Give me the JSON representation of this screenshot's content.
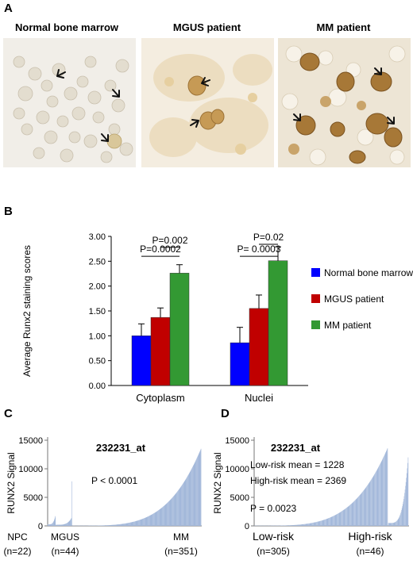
{
  "panelA": {
    "letter": "A",
    "images": [
      {
        "title": "Normal bone marrow"
      },
      {
        "title": "MGUS patient"
      },
      {
        "title": "MM patient"
      }
    ]
  },
  "panelB": {
    "letter": "B"
  },
  "panelC": {
    "letter": "C"
  },
  "panelD": {
    "letter": "D"
  },
  "chart_data": [
    {
      "type": "bar",
      "categories": [
        "Cytoplasm",
        "Nuclei"
      ],
      "series": [
        {
          "name": "Normal bone marrow",
          "color": "#0000ff",
          "values": [
            1.0,
            0.86
          ],
          "errors": [
            0.24,
            0.31
          ]
        },
        {
          "name": "MGUS patient",
          "color": "#c00000",
          "values": [
            1.37,
            1.55
          ],
          "errors": [
            0.19,
            0.27
          ]
        },
        {
          "name": "MM patient",
          "color": "#339933",
          "values": [
            2.26,
            2.51
          ],
          "errors": [
            0.17,
            0.28
          ]
        }
      ],
      "ylabel": "Average Runx2 staining scores",
      "ylim": [
        0,
        3
      ],
      "yticks": [
        "0.00",
        "0.50",
        "1.00",
        "1.50",
        "2.00",
        "2.50",
        "3.00"
      ],
      "annotations": [
        {
          "text": "P=0.002",
          "group": "Cytoplasm",
          "from": "MGUS patient",
          "to": "MM patient"
        },
        {
          "text": "P=0.0002",
          "group": "Cytoplasm",
          "from": "Normal bone marrow",
          "to": "MM patient"
        },
        {
          "text": "P=0.02",
          "group": "Nuclei",
          "from": "MGUS patient",
          "to": "MM patient"
        },
        {
          "text": "P= 0.0003",
          "group": "Nuclei",
          "from": "Normal bone marrow",
          "to": "MM patient"
        }
      ],
      "legend_position": "right"
    },
    {
      "type": "bar",
      "title": "232231_at",
      "ylabel": "RUNX2 Signal",
      "ylim": [
        0,
        15000
      ],
      "yticks": [
        "0",
        "5000",
        "10000",
        "15000"
      ],
      "groups": [
        {
          "label": "NPC",
          "count_label": "(n=22)",
          "n": 22,
          "min": 250,
          "max": 1700
        },
        {
          "label": "MGUS",
          "count_label": "(n=44)",
          "n": 44,
          "min": 200,
          "max": 1500,
          "spike": 7800
        },
        {
          "label": "MM",
          "count_label": "(n=351)",
          "n": 351,
          "min": 40,
          "max": 13500
        }
      ],
      "color": "#a3b8da",
      "annotations": [
        "P < 0.0001"
      ]
    },
    {
      "type": "bar",
      "title": "232231_at",
      "ylabel": "RUNX2 Signal",
      "ylim": [
        0,
        15000
      ],
      "yticks": [
        "0",
        "5000",
        "10000",
        "15000"
      ],
      "groups": [
        {
          "label": "Low-risk",
          "count_label": "(n=305)",
          "n": 305,
          "min": 40,
          "max": 13600
        },
        {
          "label": "High-risk",
          "count_label": "(n=46)",
          "n": 46,
          "min": 500,
          "max": 12000
        }
      ],
      "color": "#a3b8da",
      "annotations": [
        "Low-risk mean = 1228",
        "High-risk mean = 2369",
        "P = 0.0023"
      ]
    }
  ]
}
